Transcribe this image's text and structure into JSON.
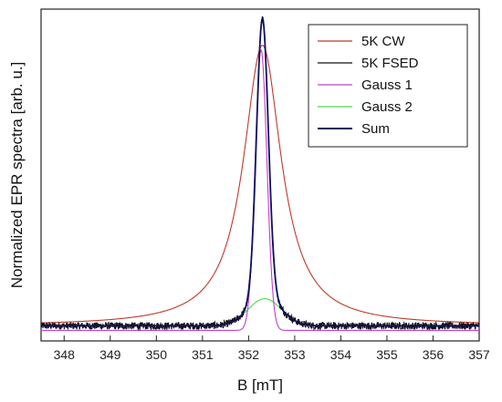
{
  "chart_data": {
    "type": "line",
    "xlabel": "B [mT]",
    "ylabel": "Normalized EPR spectra [arb. u.]",
    "xlim": [
      347.5,
      357
    ],
    "ylim": [
      -0.05,
      1.05
    ],
    "x_ticks": [
      348,
      349,
      350,
      351,
      352,
      353,
      354,
      355,
      356,
      357
    ],
    "y_ticks_shown": false,
    "grid": false,
    "legend_position": "top-right",
    "series": [
      {
        "name": "5K CW",
        "color": "#c0392b",
        "shape": "lorentzian",
        "center": 352.3,
        "fwhm": 1.0,
        "amplitude": 0.93,
        "baseline": 0.0,
        "noise": 0.0,
        "points": [
          [
            347.5,
            0.01
          ],
          [
            349,
            0.03
          ],
          [
            350,
            0.06
          ],
          [
            351,
            0.15
          ],
          [
            351.6,
            0.35
          ],
          [
            352.0,
            0.7
          ],
          [
            352.3,
            0.93
          ],
          [
            352.6,
            0.7
          ],
          [
            353.0,
            0.35
          ],
          [
            353.6,
            0.14
          ],
          [
            354.5,
            0.05
          ],
          [
            356,
            0.02
          ],
          [
            357,
            0.01
          ]
        ]
      },
      {
        "name": "5K FSED",
        "color": "#111111",
        "shape": "gauss+gauss",
        "center": 352.3,
        "fwhm": 0.3,
        "amplitude": 0.93,
        "amplitude2": 0.09,
        "fwhm2": 0.85,
        "baseline": 0.0,
        "noise": 0.012,
        "points": [
          [
            347.5,
            0.0
          ],
          [
            351,
            0.0
          ],
          [
            351.8,
            0.05
          ],
          [
            352.1,
            0.55
          ],
          [
            352.3,
            0.98
          ],
          [
            352.5,
            0.55
          ],
          [
            352.8,
            0.05
          ],
          [
            353.5,
            0.0
          ],
          [
            357,
            0.0
          ]
        ]
      },
      {
        "name": "Gauss 1",
        "color": "#c040d0",
        "shape": "gauss",
        "center": 352.27,
        "fwhm": 0.3,
        "amplitude": 0.93,
        "baseline": -0.015,
        "noise": 0.0,
        "points": [
          [
            347.5,
            -0.015
          ],
          [
            351.8,
            -0.01
          ],
          [
            352.1,
            0.45
          ],
          [
            352.27,
            0.93
          ],
          [
            352.45,
            0.45
          ],
          [
            352.75,
            -0.01
          ],
          [
            357,
            -0.015
          ]
        ]
      },
      {
        "name": "Gauss 2",
        "color": "#4cd64c",
        "shape": "gauss",
        "center": 352.35,
        "fwhm": 0.85,
        "amplitude": 0.09,
        "baseline": 0.0,
        "noise": 0.0,
        "points": [
          [
            351.2,
            0.0
          ],
          [
            351.9,
            0.05
          ],
          [
            352.35,
            0.09
          ],
          [
            352.8,
            0.05
          ],
          [
            353.5,
            0.0
          ]
        ]
      },
      {
        "name": "Sum",
        "color": "#101060",
        "shape": "gauss+gauss",
        "center": 352.3,
        "fwhm": 0.3,
        "amplitude": 0.93,
        "amplitude2": 0.09,
        "fwhm2": 0.85,
        "baseline": 0.0,
        "noise": 0.0,
        "points": [
          [
            347.5,
            0.0
          ],
          [
            351,
            0.0
          ],
          [
            351.8,
            0.05
          ],
          [
            352.1,
            0.55
          ],
          [
            352.3,
            1.02
          ],
          [
            352.5,
            0.55
          ],
          [
            352.8,
            0.05
          ],
          [
            353.5,
            0.0
          ],
          [
            357,
            0.0
          ]
        ]
      }
    ]
  }
}
